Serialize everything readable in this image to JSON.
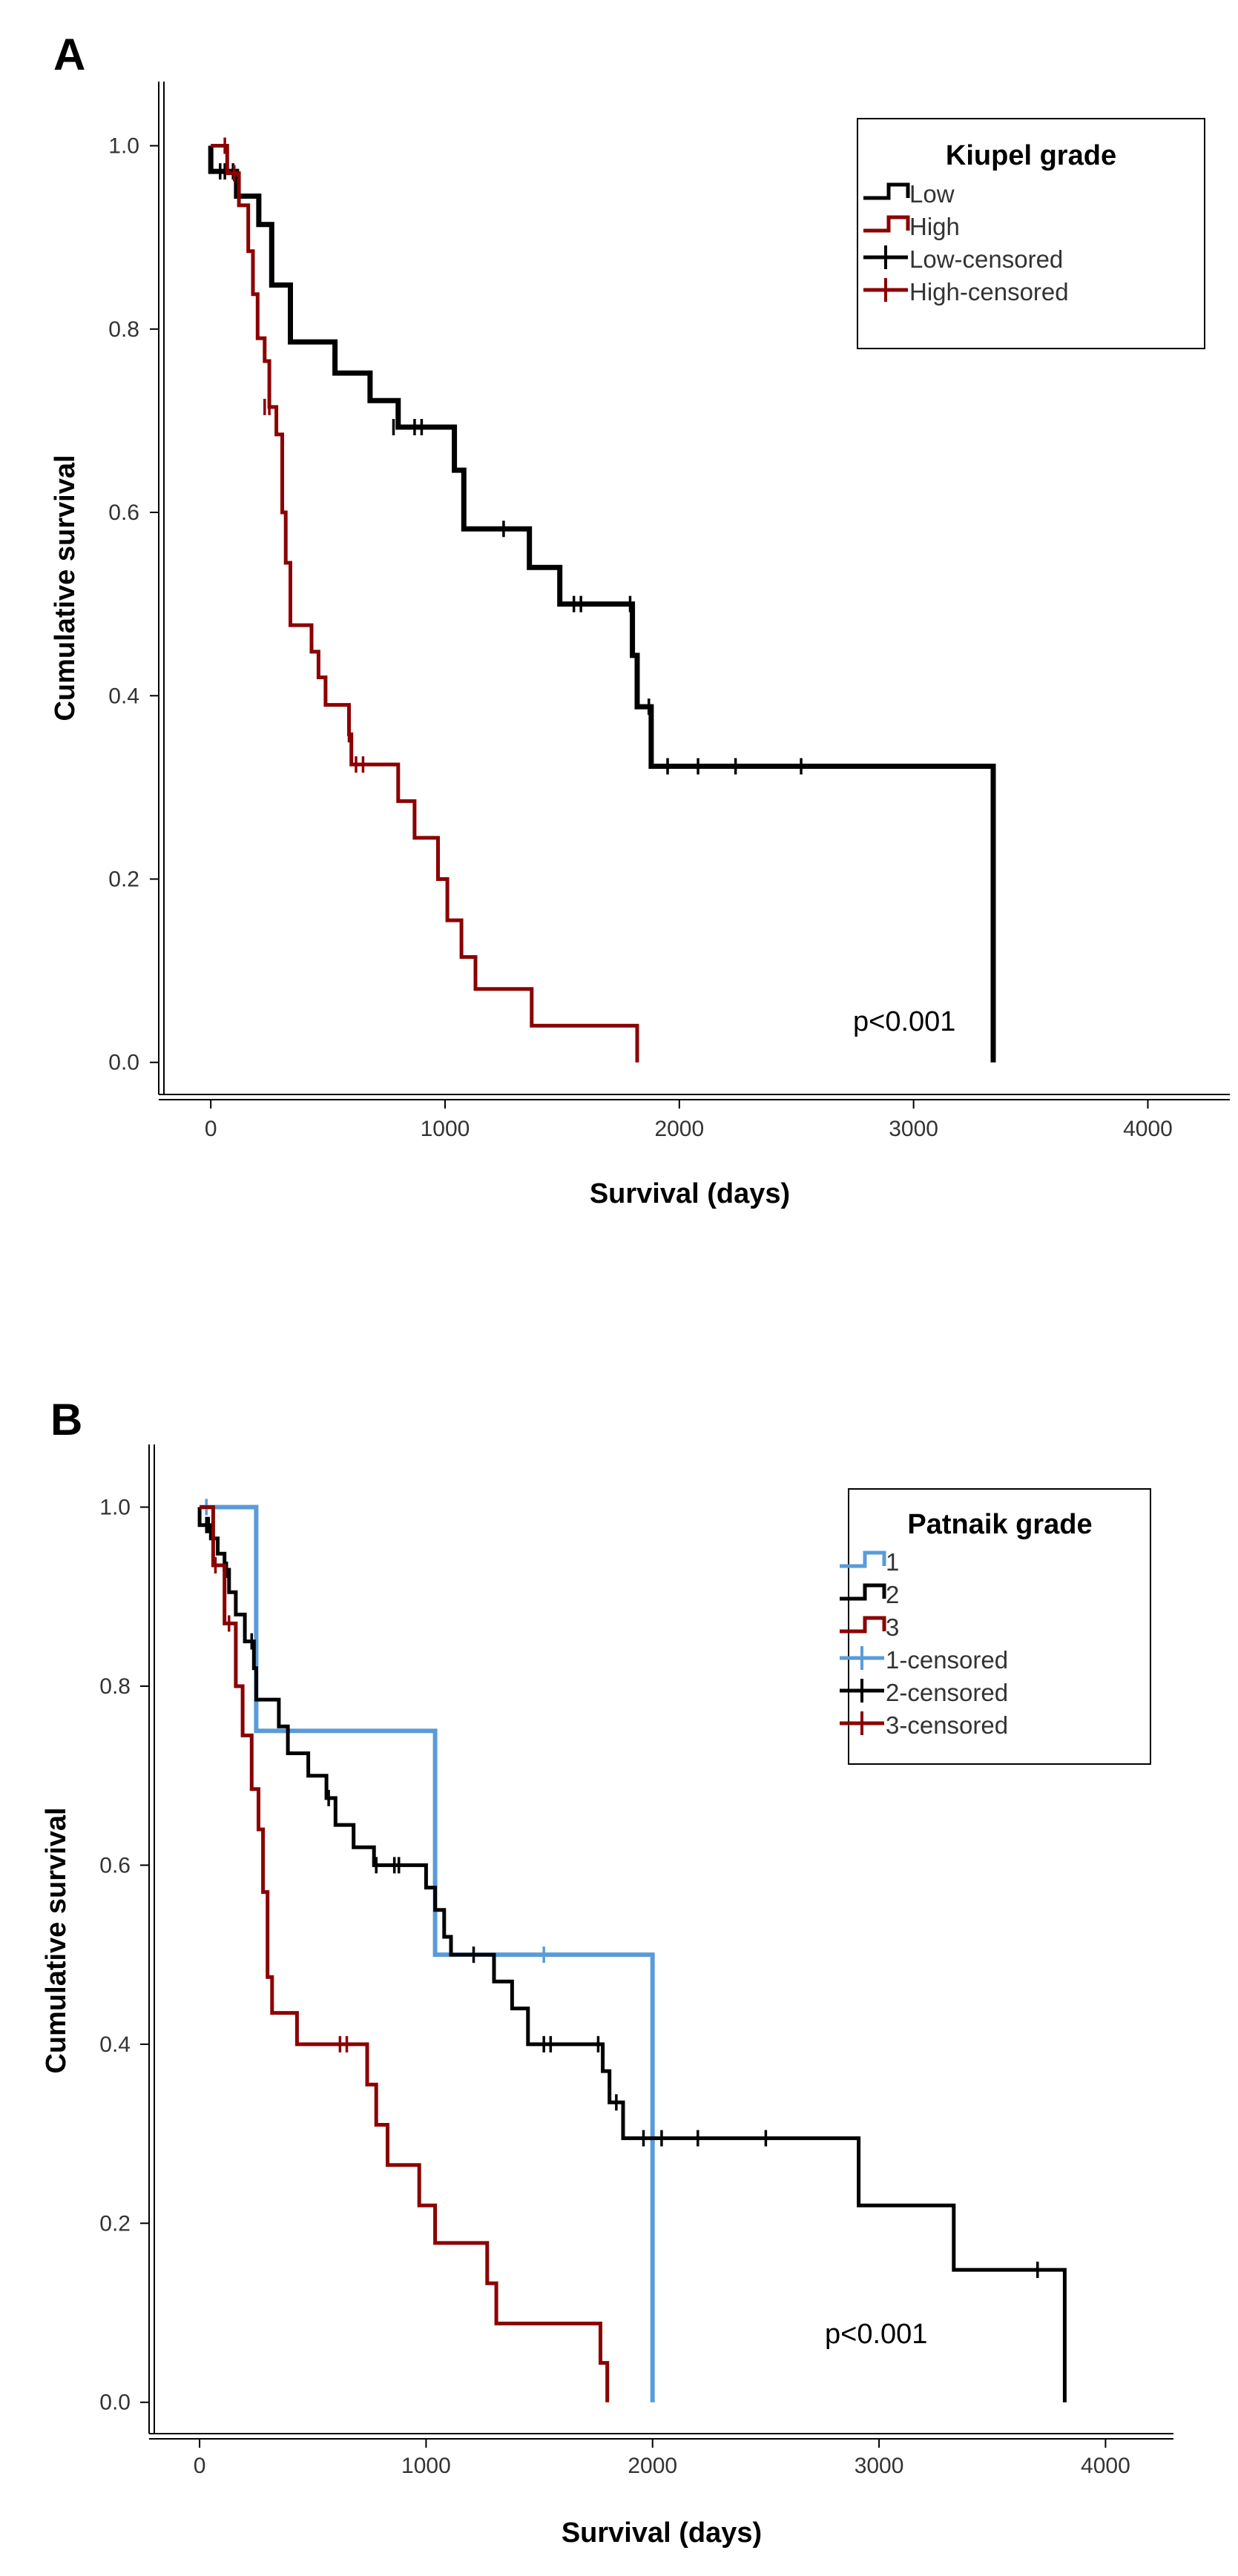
{
  "chart_data": [
    {
      "type": "line",
      "panel_label": "A",
      "xlabel": "Survival (days)",
      "ylabel": "Cumulative survival",
      "xlim": [
        -200,
        4350
      ],
      "ylim": [
        -0.035,
        1.07
      ],
      "xticks": [
        0,
        1000,
        2000,
        3000,
        4000
      ],
      "yticks": [
        0.0,
        0.2,
        0.4,
        0.6,
        0.8,
        1.0
      ],
      "ytick_labels": [
        "0.0",
        "0.2",
        "0.4",
        "0.6",
        "0.8",
        "1.0"
      ],
      "annotation": "p<0.001",
      "annotation_pos": [
        2500,
        0.04
      ],
      "legend": {
        "title": "Kiupel grade",
        "entries": [
          {
            "label": "Low",
            "kind": "step",
            "color": "#000000"
          },
          {
            "label": "High",
            "kind": "step",
            "color": "#8b0000"
          },
          {
            "label": "Low-censored",
            "kind": "cross",
            "color": "#000000"
          },
          {
            "label": "High-censored",
            "kind": "cross",
            "color": "#8b0000"
          }
        ]
      },
      "series": [
        {
          "name": "Low",
          "color": "#000000",
          "width": 7,
          "steps": [
            [
              0,
              1.0
            ],
            [
              0,
              0.972
            ],
            [
              110,
              0.972
            ],
            [
              110,
              0.945
            ],
            [
              205,
              0.945
            ],
            [
              205,
              0.914
            ],
            [
              260,
              0.914
            ],
            [
              260,
              0.848
            ],
            [
              340,
              0.848
            ],
            [
              340,
              0.786
            ],
            [
              530,
              0.786
            ],
            [
              530,
              0.752
            ],
            [
              680,
              0.752
            ],
            [
              680,
              0.722
            ],
            [
              800,
              0.722
            ],
            [
              800,
              0.693
            ],
            [
              1040,
              0.693
            ],
            [
              1040,
              0.646
            ],
            [
              1080,
              0.646
            ],
            [
              1080,
              0.582
            ],
            [
              1360,
              0.582
            ],
            [
              1360,
              0.54
            ],
            [
              1490,
              0.54
            ],
            [
              1490,
              0.5
            ],
            [
              1800,
              0.5
            ],
            [
              1800,
              0.444
            ],
            [
              1820,
              0.444
            ],
            [
              1820,
              0.388
            ],
            [
              1880,
              0.388
            ],
            [
              1880,
              0.323
            ],
            [
              3340,
              0.323
            ],
            [
              3340,
              0.0
            ]
          ],
          "censored": [
            [
              40,
              0.972
            ],
            [
              60,
              0.972
            ],
            [
              95,
              0.972
            ],
            [
              780,
              0.693
            ],
            [
              870,
              0.693
            ],
            [
              900,
              0.693
            ],
            [
              1250,
              0.582
            ],
            [
              1550,
              0.5
            ],
            [
              1580,
              0.5
            ],
            [
              1790,
              0.5
            ],
            [
              1870,
              0.388
            ],
            [
              1950,
              0.323
            ],
            [
              2080,
              0.323
            ],
            [
              2240,
              0.323
            ],
            [
              2520,
              0.323
            ]
          ]
        },
        {
          "name": "High",
          "color": "#8b0000",
          "width": 5,
          "steps": [
            [
              0,
              1.0
            ],
            [
              70,
              1.0
            ],
            [
              70,
              0.97
            ],
            [
              120,
              0.97
            ],
            [
              120,
              0.935
            ],
            [
              160,
              0.935
            ],
            [
              160,
              0.885
            ],
            [
              180,
              0.885
            ],
            [
              180,
              0.838
            ],
            [
              200,
              0.838
            ],
            [
              200,
              0.79
            ],
            [
              230,
              0.79
            ],
            [
              230,
              0.765
            ],
            [
              250,
              0.765
            ],
            [
              250,
              0.715
            ],
            [
              280,
              0.715
            ],
            [
              280,
              0.685
            ],
            [
              305,
              0.685
            ],
            [
              305,
              0.6
            ],
            [
              320,
              0.6
            ],
            [
              320,
              0.545
            ],
            [
              340,
              0.545
            ],
            [
              340,
              0.477
            ],
            [
              430,
              0.477
            ],
            [
              430,
              0.448
            ],
            [
              460,
              0.448
            ],
            [
              460,
              0.42
            ],
            [
              490,
              0.42
            ],
            [
              490,
              0.39
            ],
            [
              590,
              0.39
            ],
            [
              590,
              0.358
            ],
            [
              600,
              0.358
            ],
            [
              600,
              0.325
            ],
            [
              800,
              0.325
            ],
            [
              800,
              0.285
            ],
            [
              870,
              0.285
            ],
            [
              870,
              0.245
            ],
            [
              970,
              0.245
            ],
            [
              970,
              0.2
            ],
            [
              1010,
              0.2
            ],
            [
              1010,
              0.155
            ],
            [
              1070,
              0.155
            ],
            [
              1070,
              0.115
            ],
            [
              1130,
              0.115
            ],
            [
              1130,
              0.08
            ],
            [
              1370,
              0.08
            ],
            [
              1370,
              0.04
            ],
            [
              1820,
              0.04
            ],
            [
              1820,
              0.0
            ]
          ],
          "censored": [
            [
              60,
              1.0
            ],
            [
              100,
              0.97
            ],
            [
              230,
              0.715
            ],
            [
              250,
              0.715
            ],
            [
              590,
              0.358
            ],
            [
              620,
              0.325
            ],
            [
              650,
              0.325
            ]
          ]
        }
      ]
    },
    {
      "type": "line",
      "panel_label": "B",
      "xlabel": "Survival (days)",
      "ylabel": "Cumulative survival",
      "xlim": [
        -200,
        4300
      ],
      "ylim": [
        -0.035,
        1.07
      ],
      "xticks": [
        0,
        1000,
        2000,
        3000,
        4000
      ],
      "yticks": [
        0.0,
        0.2,
        0.4,
        0.6,
        0.8,
        1.0
      ],
      "ytick_labels": [
        "0.0",
        "0.2",
        "0.4",
        "0.6",
        "0.8",
        "1.0"
      ],
      "annotation": "p<0.001",
      "annotation_pos": [
        2650,
        0.04
      ],
      "legend": {
        "title": "Patnaik grade",
        "entries": [
          {
            "label": "1",
            "kind": "step",
            "color": "#5a9bd8"
          },
          {
            "label": "2",
            "kind": "step",
            "color": "#000000"
          },
          {
            "label": "3",
            "kind": "step",
            "color": "#8b0000"
          },
          {
            "label": "1-censored",
            "kind": "cross",
            "color": "#5a9bd8"
          },
          {
            "label": "2-censored",
            "kind": "cross",
            "color": "#000000"
          },
          {
            "label": "3-censored",
            "kind": "cross",
            "color": "#8b0000"
          }
        ]
      },
      "series": [
        {
          "name": "1",
          "color": "#5a9bd8",
          "width": 6,
          "steps": [
            [
              0,
              1.0
            ],
            [
              250,
              1.0
            ],
            [
              250,
              0.75
            ],
            [
              1040,
              0.75
            ],
            [
              1040,
              0.5
            ],
            [
              2000,
              0.5
            ],
            [
              2000,
              0.0
            ]
          ],
          "censored": [
            [
              30,
              1.0
            ],
            [
              1520,
              0.5
            ]
          ]
        },
        {
          "name": "2",
          "color": "#000000",
          "width": 5,
          "steps": [
            [
              0,
              1.0
            ],
            [
              0,
              0.98
            ],
            [
              50,
              0.98
            ],
            [
              50,
              0.965
            ],
            [
              80,
              0.965
            ],
            [
              80,
              0.948
            ],
            [
              110,
              0.948
            ],
            [
              110,
              0.93
            ],
            [
              130,
              0.93
            ],
            [
              130,
              0.905
            ],
            [
              160,
              0.905
            ],
            [
              160,
              0.88
            ],
            [
              200,
              0.88
            ],
            [
              200,
              0.85
            ],
            [
              240,
              0.85
            ],
            [
              240,
              0.82
            ],
            [
              250,
              0.82
            ],
            [
              250,
              0.785
            ],
            [
              350,
              0.785
            ],
            [
              350,
              0.755
            ],
            [
              390,
              0.755
            ],
            [
              390,
              0.725
            ],
            [
              480,
              0.725
            ],
            [
              480,
              0.7
            ],
            [
              560,
              0.7
            ],
            [
              560,
              0.675
            ],
            [
              600,
              0.675
            ],
            [
              600,
              0.645
            ],
            [
              680,
              0.645
            ],
            [
              680,
              0.62
            ],
            [
              770,
              0.62
            ],
            [
              770,
              0.6
            ],
            [
              1000,
              0.6
            ],
            [
              1000,
              0.575
            ],
            [
              1040,
              0.575
            ],
            [
              1040,
              0.55
            ],
            [
              1080,
              0.55
            ],
            [
              1080,
              0.52
            ],
            [
              1110,
              0.52
            ],
            [
              1110,
              0.5
            ],
            [
              1300,
              0.5
            ],
            [
              1300,
              0.47
            ],
            [
              1380,
              0.47
            ],
            [
              1380,
              0.44
            ],
            [
              1450,
              0.44
            ],
            [
              1450,
              0.4
            ],
            [
              1780,
              0.4
            ],
            [
              1780,
              0.37
            ],
            [
              1810,
              0.37
            ],
            [
              1810,
              0.335
            ],
            [
              1870,
              0.335
            ],
            [
              1870,
              0.295
            ],
            [
              2910,
              0.295
            ],
            [
              2910,
              0.22
            ],
            [
              3330,
              0.22
            ],
            [
              3330,
              0.148
            ],
            [
              3820,
              0.148
            ],
            [
              3820,
              0.0
            ]
          ],
          "censored": [
            [
              30,
              0.98
            ],
            [
              40,
              0.98
            ],
            [
              60,
              0.965
            ],
            [
              120,
              0.93
            ],
            [
              230,
              0.85
            ],
            [
              570,
              0.675
            ],
            [
              780,
              0.6
            ],
            [
              860,
              0.6
            ],
            [
              880,
              0.6
            ],
            [
              1210,
              0.5
            ],
            [
              1520,
              0.4
            ],
            [
              1550,
              0.4
            ],
            [
              1760,
              0.4
            ],
            [
              1840,
              0.335
            ],
            [
              1960,
              0.295
            ],
            [
              2040,
              0.295
            ],
            [
              2200,
              0.295
            ],
            [
              2500,
              0.295
            ],
            [
              3700,
              0.148
            ]
          ]
        },
        {
          "name": "3",
          "color": "#8b0000",
          "width": 5,
          "steps": [
            [
              0,
              1.0
            ],
            [
              60,
              1.0
            ],
            [
              60,
              0.935
            ],
            [
              110,
              0.935
            ],
            [
              110,
              0.87
            ],
            [
              160,
              0.87
            ],
            [
              160,
              0.8
            ],
            [
              190,
              0.8
            ],
            [
              190,
              0.745
            ],
            [
              230,
              0.745
            ],
            [
              230,
              0.685
            ],
            [
              260,
              0.685
            ],
            [
              260,
              0.64
            ],
            [
              280,
              0.64
            ],
            [
              280,
              0.57
            ],
            [
              300,
              0.57
            ],
            [
              300,
              0.475
            ],
            [
              320,
              0.475
            ],
            [
              320,
              0.435
            ],
            [
              430,
              0.435
            ],
            [
              430,
              0.4
            ],
            [
              740,
              0.4
            ],
            [
              740,
              0.355
            ],
            [
              780,
              0.355
            ],
            [
              780,
              0.31
            ],
            [
              830,
              0.31
            ],
            [
              830,
              0.265
            ],
            [
              970,
              0.265
            ],
            [
              970,
              0.22
            ],
            [
              1040,
              0.22
            ],
            [
              1040,
              0.178
            ],
            [
              1270,
              0.178
            ],
            [
              1270,
              0.133
            ],
            [
              1310,
              0.133
            ],
            [
              1310,
              0.088
            ],
            [
              1770,
              0.088
            ],
            [
              1770,
              0.044
            ],
            [
              1800,
              0.044
            ],
            [
              1800,
              0.0
            ]
          ],
          "censored": [
            [
              70,
              0.935
            ],
            [
              130,
              0.87
            ],
            [
              620,
              0.4
            ],
            [
              650,
              0.4
            ]
          ]
        }
      ]
    }
  ]
}
